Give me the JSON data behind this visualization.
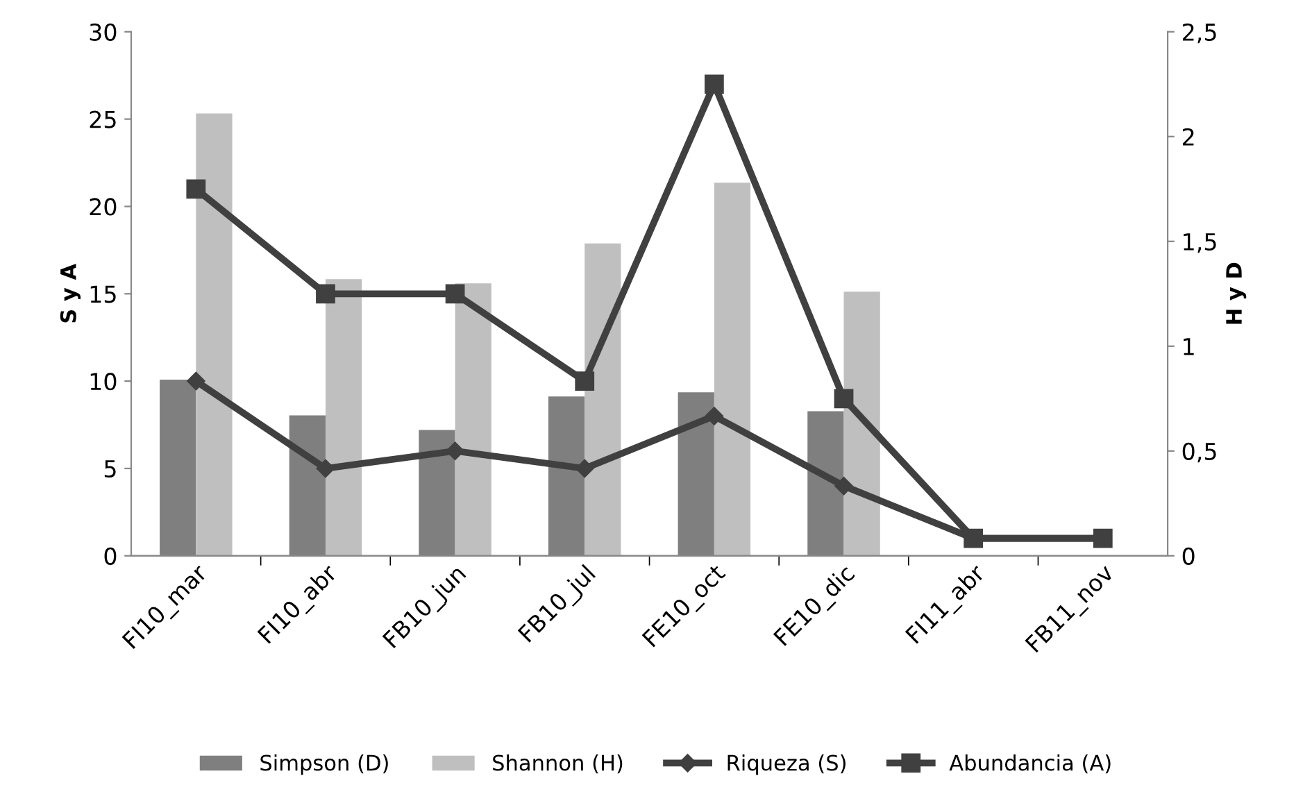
{
  "chart_data": {
    "type": "bar",
    "categories": [
      "FI10_mar",
      "FI10_abr",
      "FB10_jun",
      "FB10_jul",
      "FE10_oct",
      "FE10_dic",
      "FI11_abr",
      "FB11_nov"
    ],
    "ylabel": "S y A",
    "y2label": "H y D",
    "ylim": [
      0,
      30
    ],
    "yticks": [
      0,
      5,
      10,
      15,
      20,
      25,
      30
    ],
    "y2lim": [
      0,
      2.5
    ],
    "y2ticks": [
      0,
      {
        "value": 0.5,
        "label": "0,5"
      },
      1,
      {
        "value": 1.5,
        "label": "1,5"
      },
      2,
      {
        "value": 2.5,
        "label": "2,5"
      }
    ],
    "legend": "bottom",
    "grid": false,
    "series": [
      {
        "name": "Simpson (D)",
        "axis": "y2",
        "color": "#7f7f7f",
        "values": [
          0.84,
          0.67,
          0.6,
          0.76,
          0.78,
          0.69,
          0,
          0
        ]
      },
      {
        "name": "Shannon (H)",
        "axis": "y2",
        "color": "#bfbfbf",
        "values": [
          2.11,
          1.32,
          1.3,
          1.49,
          1.78,
          1.26,
          0,
          0
        ]
      },
      {
        "name": "Riqueza (S)",
        "type": "line",
        "axis": "y",
        "color": "#404040",
        "marker": "diamond",
        "values": [
          10,
          5,
          6,
          5,
          8,
          4,
          1,
          1
        ]
      },
      {
        "name": "Abundancia (A)",
        "type": "line",
        "axis": "y",
        "color": "#404040",
        "marker": "square",
        "values": [
          21,
          15,
          15,
          10,
          27,
          9,
          1,
          1
        ]
      }
    ]
  }
}
